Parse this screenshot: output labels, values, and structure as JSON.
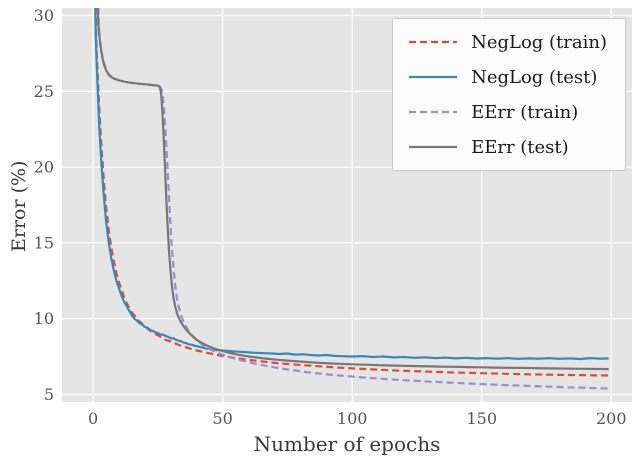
{
  "chart_data": {
    "type": "line",
    "title": "",
    "xlabel": "Number of epochs",
    "ylabel": "Error (%)",
    "xlim": [
      -12,
      208
    ],
    "ylim": [
      4.5,
      30.5
    ],
    "xticks": [
      0,
      50,
      100,
      150,
      200
    ],
    "yticks": [
      5,
      10,
      15,
      20,
      25,
      30
    ],
    "grid": true,
    "legend_position": "upper right",
    "style": {
      "plot_bg": "#e5e5e5",
      "grid_color": "#fbfbfb",
      "tick_label_color": "#555555",
      "axis_label_color": "#3a3a3a",
      "legend_bg": "#fcfcfc",
      "legend_border": "#c9c9c9",
      "linewidth": 2.2
    },
    "series": [
      {
        "id": "neglog-train",
        "name": "NegLog (train)",
        "color": "#e24a33",
        "dash": "dashed",
        "points": [
          [
            0.8,
            32
          ],
          [
            1.2,
            28.5
          ],
          [
            1.6,
            26.8
          ],
          [
            2,
            25.2
          ],
          [
            2.5,
            23.4
          ],
          [
            3,
            21.9
          ],
          [
            3.5,
            20.6
          ],
          [
            4,
            19.4
          ],
          [
            4.5,
            18.3
          ],
          [
            5,
            17.4
          ],
          [
            6,
            15.9
          ],
          [
            7,
            14.7
          ],
          [
            8,
            13.8
          ],
          [
            9,
            13
          ],
          [
            10,
            12.4
          ],
          [
            11,
            11.9
          ],
          [
            12,
            11.4
          ],
          [
            13,
            11
          ],
          [
            14,
            10.7
          ],
          [
            15,
            10.4
          ],
          [
            16,
            10.2
          ],
          [
            18,
            9.8
          ],
          [
            20,
            9.5
          ],
          [
            22,
            9.2
          ],
          [
            24,
            9
          ],
          [
            26,
            8.8
          ],
          [
            28,
            8.6
          ],
          [
            30,
            8.5
          ],
          [
            32,
            8.35
          ],
          [
            34,
            8.2
          ],
          [
            36,
            8.1
          ],
          [
            38,
            8
          ],
          [
            40,
            7.9
          ],
          [
            44,
            7.75
          ],
          [
            48,
            7.6
          ],
          [
            52,
            7.48
          ],
          [
            56,
            7.38
          ],
          [
            60,
            7.28
          ],
          [
            65,
            7.18
          ],
          [
            70,
            7.09
          ],
          [
            75,
            7.01
          ],
          [
            80,
            6.94
          ],
          [
            85,
            6.88
          ],
          [
            90,
            6.82
          ],
          [
            95,
            6.77
          ],
          [
            100,
            6.72
          ],
          [
            110,
            6.63
          ],
          [
            120,
            6.56
          ],
          [
            130,
            6.5
          ],
          [
            140,
            6.44
          ],
          [
            150,
            6.4
          ],
          [
            160,
            6.36
          ],
          [
            170,
            6.32
          ],
          [
            180,
            6.29
          ],
          [
            190,
            6.27
          ],
          [
            199,
            6.25
          ]
        ]
      },
      {
        "id": "neglog-test",
        "name": "NegLog (test)",
        "color": "#348abd",
        "dash": "solid",
        "points": [
          [
            0.7,
            32
          ],
          [
            1,
            28.8
          ],
          [
            1.4,
            26.8
          ],
          [
            1.8,
            25
          ],
          [
            2.2,
            23.4
          ],
          [
            2.6,
            22
          ],
          [
            3,
            20.8
          ],
          [
            3.5,
            19.5
          ],
          [
            4,
            18.4
          ],
          [
            4.5,
            17.4
          ],
          [
            5,
            16.5
          ],
          [
            6,
            15.1
          ],
          [
            7,
            14
          ],
          [
            8,
            13.2
          ],
          [
            9,
            12.5
          ],
          [
            10,
            12
          ],
          [
            11,
            11.5
          ],
          [
            12,
            11.1
          ],
          [
            13,
            10.8
          ],
          [
            14,
            10.5
          ],
          [
            15,
            10.2
          ],
          [
            16,
            10
          ],
          [
            17,
            9.85
          ],
          [
            18,
            9.7
          ],
          [
            19,
            9.6
          ],
          [
            20,
            9.45
          ],
          [
            21,
            9.4
          ],
          [
            22,
            9.25
          ],
          [
            23,
            9.2
          ],
          [
            24,
            9.1
          ],
          [
            25,
            9.05
          ],
          [
            26,
            8.95
          ],
          [
            27,
            8.95
          ],
          [
            28,
            8.85
          ],
          [
            29,
            8.8
          ],
          [
            30,
            8.7
          ],
          [
            31,
            8.72
          ],
          [
            32,
            8.6
          ],
          [
            33,
            8.55
          ],
          [
            34,
            8.5
          ],
          [
            35,
            8.42
          ],
          [
            36,
            8.38
          ],
          [
            37,
            8.3
          ],
          [
            38,
            8.28
          ],
          [
            39,
            8.22
          ],
          [
            40,
            8.18
          ],
          [
            42,
            8.1
          ],
          [
            44,
            8.02
          ],
          [
            46,
            7.98
          ],
          [
            48,
            7.92
          ],
          [
            50,
            7.9
          ],
          [
            52,
            7.87
          ],
          [
            54,
            7.84
          ],
          [
            56,
            7.82
          ],
          [
            58,
            7.8
          ],
          [
            60,
            7.77
          ],
          [
            63,
            7.74
          ],
          [
            66,
            7.72
          ],
          [
            69,
            7.7
          ],
          [
            72,
            7.67
          ],
          [
            75,
            7.7
          ],
          [
            78,
            7.63
          ],
          [
            81,
            7.65
          ],
          [
            84,
            7.6
          ],
          [
            87,
            7.57
          ],
          [
            90,
            7.6
          ],
          [
            93,
            7.54
          ],
          [
            96,
            7.52
          ],
          [
            100,
            7.5
          ],
          [
            104,
            7.53
          ],
          [
            108,
            7.47
          ],
          [
            112,
            7.5
          ],
          [
            116,
            7.44
          ],
          [
            120,
            7.47
          ],
          [
            124,
            7.42
          ],
          [
            128,
            7.45
          ],
          [
            132,
            7.4
          ],
          [
            136,
            7.43
          ],
          [
            140,
            7.38
          ],
          [
            144,
            7.42
          ],
          [
            148,
            7.37
          ],
          [
            152,
            7.4
          ],
          [
            156,
            7.36
          ],
          [
            160,
            7.4
          ],
          [
            164,
            7.35
          ],
          [
            168,
            7.38
          ],
          [
            172,
            7.36
          ],
          [
            176,
            7.4
          ],
          [
            180,
            7.35
          ],
          [
            184,
            7.38
          ],
          [
            188,
            7.34
          ],
          [
            192,
            7.4
          ],
          [
            196,
            7.36
          ],
          [
            199,
            7.38
          ]
        ]
      },
      {
        "id": "eerr-train",
        "name": "EErr (train)",
        "color": "#988ed5",
        "dash": "dashed",
        "points": [
          [
            1.8,
            32
          ],
          [
            2.2,
            29.3
          ],
          [
            2.6,
            28.5
          ],
          [
            3,
            27.9
          ],
          [
            3.5,
            27.4
          ],
          [
            4,
            27
          ],
          [
            4.5,
            26.7
          ],
          [
            5,
            26.45
          ],
          [
            6,
            26.15
          ],
          [
            7,
            25.98
          ],
          [
            8,
            25.87
          ],
          [
            9,
            25.79
          ],
          [
            10,
            25.73
          ],
          [
            12,
            25.64
          ],
          [
            14,
            25.58
          ],
          [
            16,
            25.53
          ],
          [
            18,
            25.49
          ],
          [
            20,
            25.45
          ],
          [
            22,
            25.42
          ],
          [
            24,
            25.38
          ],
          [
            25.5,
            25.33
          ],
          [
            26.5,
            25.1
          ],
          [
            27.2,
            24.2
          ],
          [
            27.8,
            22.8
          ],
          [
            28.4,
            21
          ],
          [
            29,
            19
          ],
          [
            29.6,
            17
          ],
          [
            30.2,
            15.2
          ],
          [
            30.8,
            13.8
          ],
          [
            31.5,
            12.5
          ],
          [
            32.2,
            11.5
          ],
          [
            33,
            10.8
          ],
          [
            34,
            10.2
          ],
          [
            35,
            9.75
          ],
          [
            36.5,
            9.3
          ],
          [
            38,
            8.95
          ],
          [
            40,
            8.6
          ],
          [
            42,
            8.3
          ],
          [
            44,
            8.08
          ],
          [
            46,
            7.9
          ],
          [
            48,
            7.75
          ],
          [
            50,
            7.62
          ],
          [
            53,
            7.45
          ],
          [
            56,
            7.3
          ],
          [
            59,
            7.17
          ],
          [
            62,
            7.05
          ],
          [
            65,
            6.95
          ],
          [
            68,
            6.85
          ],
          [
            71,
            6.76
          ],
          [
            75,
            6.65
          ],
          [
            79,
            6.55
          ],
          [
            83,
            6.46
          ],
          [
            87,
            6.38
          ],
          [
            91,
            6.31
          ],
          [
            95,
            6.25
          ],
          [
            100,
            6.18
          ],
          [
            105,
            6.11
          ],
          [
            110,
            6.05
          ],
          [
            115,
            5.99
          ],
          [
            120,
            5.94
          ],
          [
            125,
            5.89
          ],
          [
            130,
            5.84
          ],
          [
            135,
            5.8
          ],
          [
            140,
            5.76
          ],
          [
            145,
            5.72
          ],
          [
            150,
            5.68
          ],
          [
            155,
            5.64
          ],
          [
            160,
            5.61
          ],
          [
            165,
            5.58
          ],
          [
            170,
            5.55
          ],
          [
            175,
            5.52
          ],
          [
            180,
            5.49
          ],
          [
            185,
            5.46
          ],
          [
            190,
            5.44
          ],
          [
            195,
            5.41
          ],
          [
            199,
            5.39
          ]
        ]
      },
      {
        "id": "eerr-test",
        "name": "EErr (test)",
        "color": "#777777",
        "dash": "solid",
        "points": [
          [
            1.6,
            32
          ],
          [
            2,
            29.4
          ],
          [
            2.4,
            28.7
          ],
          [
            2.8,
            28.1
          ],
          [
            3.2,
            27.6
          ],
          [
            3.6,
            27.2
          ],
          [
            4,
            26.9
          ],
          [
            4.5,
            26.6
          ],
          [
            5,
            26.4
          ],
          [
            6,
            26.1
          ],
          [
            7,
            25.95
          ],
          [
            8,
            25.85
          ],
          [
            9,
            25.78
          ],
          [
            10,
            25.72
          ],
          [
            12,
            25.64
          ],
          [
            14,
            25.58
          ],
          [
            16,
            25.54
          ],
          [
            18,
            25.5
          ],
          [
            20,
            25.47
          ],
          [
            22,
            25.43
          ],
          [
            24,
            25.4
          ],
          [
            25,
            25.37
          ],
          [
            25.8,
            25.3
          ],
          [
            26.3,
            24.8
          ],
          [
            26.8,
            23.5
          ],
          [
            27.3,
            21.8
          ],
          [
            27.8,
            19.8
          ],
          [
            28.3,
            17.8
          ],
          [
            28.8,
            16
          ],
          [
            29.3,
            14.5
          ],
          [
            29.8,
            13.3
          ],
          [
            30.4,
            12.2
          ],
          [
            31,
            11.4
          ],
          [
            31.7,
            10.8
          ],
          [
            32.5,
            10.3
          ],
          [
            33.5,
            9.9
          ],
          [
            34.5,
            9.6
          ],
          [
            36,
            9.25
          ],
          [
            38,
            8.9
          ],
          [
            40,
            8.6
          ],
          [
            42,
            8.4
          ],
          [
            44,
            8.22
          ],
          [
            46,
            8.08
          ],
          [
            48,
            7.96
          ],
          [
            50,
            7.86
          ],
          [
            53,
            7.73
          ],
          [
            56,
            7.62
          ],
          [
            59,
            7.53
          ],
          [
            62,
            7.46
          ],
          [
            65,
            7.4
          ],
          [
            68,
            7.34
          ],
          [
            71,
            7.29
          ],
          [
            75,
            7.23
          ],
          [
            79,
            7.18
          ],
          [
            83,
            7.13
          ],
          [
            87,
            7.09
          ],
          [
            91,
            7.05
          ],
          [
            95,
            7.02
          ],
          [
            100,
            6.99
          ],
          [
            105,
            6.96
          ],
          [
            110,
            6.93
          ],
          [
            115,
            6.91
          ],
          [
            120,
            6.89
          ],
          [
            125,
            6.87
          ],
          [
            130,
            6.85
          ],
          [
            135,
            6.83
          ],
          [
            140,
            6.82
          ],
          [
            145,
            6.8
          ],
          [
            150,
            6.79
          ],
          [
            155,
            6.77
          ],
          [
            160,
            6.76
          ],
          [
            165,
            6.75
          ],
          [
            170,
            6.74
          ],
          [
            175,
            6.72
          ],
          [
            180,
            6.71
          ],
          [
            185,
            6.7
          ],
          [
            190,
            6.69
          ],
          [
            195,
            6.68
          ],
          [
            199,
            6.67
          ]
        ]
      }
    ]
  }
}
